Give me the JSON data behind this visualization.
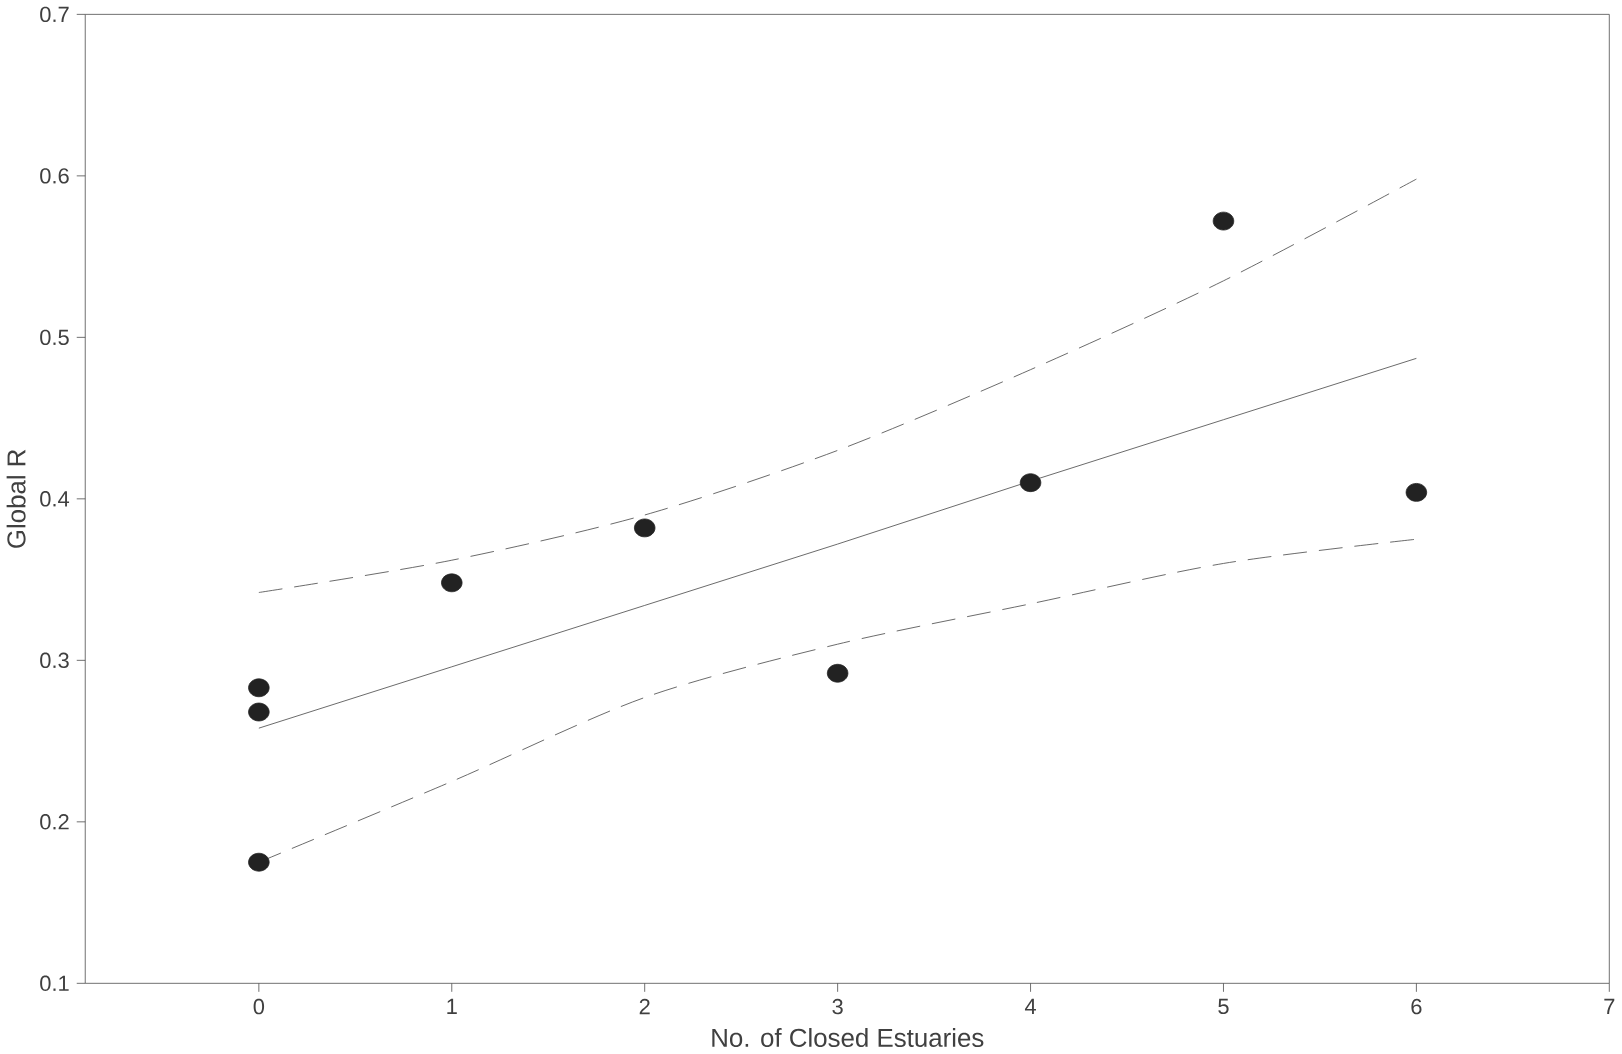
{
  "chart_data": {
    "type": "scatter",
    "xlabel": "No. of Closed Estuaries",
    "ylabel": "Global R",
    "xlim": [
      -0.9,
      7
    ],
    "ylim": [
      0.1,
      0.7
    ],
    "xticks": [
      0,
      1,
      2,
      3,
      4,
      5,
      6,
      7
    ],
    "yticks": [
      0.1,
      0.2,
      0.3,
      0.4,
      0.5,
      0.6,
      0.7
    ],
    "grid": false,
    "series": [
      {
        "color": "#222222",
        "marker": "circle",
        "x": [
          0,
          0,
          0,
          1,
          2,
          3,
          4,
          5,
          6
        ],
        "values": [
          0.283,
          0.268,
          0.175,
          0.348,
          0.382,
          0.292,
          0.41,
          0.572,
          0.404
        ]
      },
      {
        "type": "line",
        "color": "#444444",
        "marker": "none",
        "line_style": "solid",
        "x": [
          0,
          1,
          2,
          3,
          4,
          5,
          6
        ],
        "values": [
          0.258,
          0.296,
          0.334,
          0.372,
          0.411,
          0.449,
          0.487
        ]
      },
      {
        "type": "line",
        "color": "#444444",
        "marker": "none",
        "line_style": "dashed",
        "x": [
          0,
          1,
          2,
          3,
          4,
          5,
          6
        ],
        "values": [
          0.342,
          0.362,
          0.39,
          0.43,
          0.48,
          0.535,
          0.598
        ]
      },
      {
        "type": "line",
        "color": "#444444",
        "marker": "none",
        "line_style": "dashed",
        "x": [
          0,
          1,
          2,
          3,
          4,
          5,
          6
        ],
        "values": [
          0.175,
          0.225,
          0.277,
          0.31,
          0.335,
          0.36,
          0.375
        ]
      }
    ]
  }
}
